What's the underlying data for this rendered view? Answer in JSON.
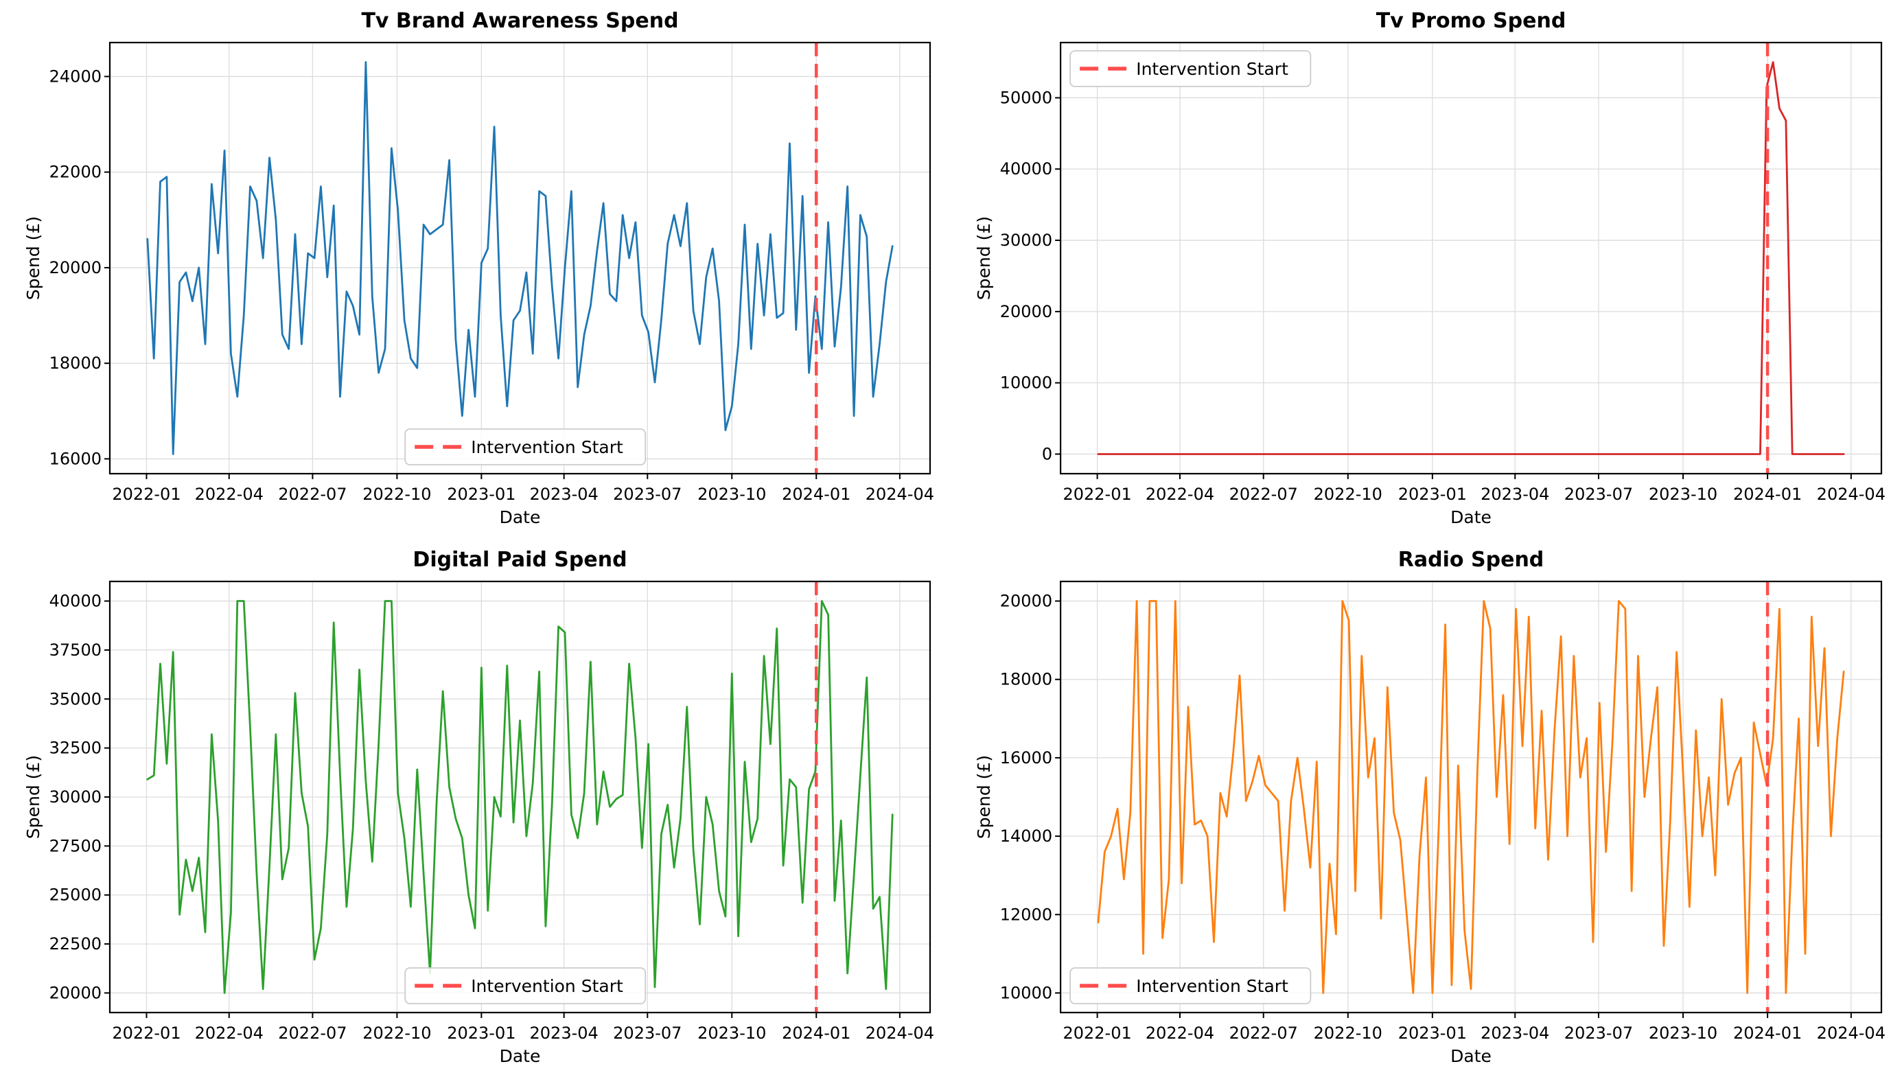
{
  "figure": {
    "background": "#ffffff",
    "grid_color": "#dcdcdc",
    "spine_color": "#000000"
  },
  "legend": {
    "label": "Intervention Start",
    "border_color": "#cccccc",
    "background": "rgba(255,255,255,0.85)"
  },
  "intervention": {
    "label": "Intervention Start",
    "date": "2024-01-01",
    "day": 729,
    "color": "#ff4d4d"
  },
  "chart_data": [
    {
      "type": "line",
      "title": "Tv Brand Awareness Spend",
      "xlabel": "Date",
      "ylabel": "Spend (£)",
      "color": "#1f77b4",
      "x_start": "2022-01-02",
      "x_step_days": 7,
      "xlim": [
        -41,
        853
      ],
      "ylim": [
        15690,
        24710
      ],
      "yticks": [
        16000,
        18000,
        20000,
        22000,
        24000
      ],
      "xtick_labels": [
        "2022-01",
        "2022-04",
        "2022-07",
        "2022-10",
        "2023-01",
        "2023-04",
        "2023-07",
        "2023-10",
        "2024-01",
        "2024-04"
      ],
      "xtick_days": [
        -1,
        89,
        180,
        272,
        364,
        454,
        545,
        637,
        729,
        820
      ],
      "legend_loc": "lower-center",
      "intervention_day": 729,
      "values": [
        20600,
        18100,
        21800,
        21900,
        16100,
        19700,
        19900,
        19300,
        20000,
        18400,
        21750,
        20300,
        22450,
        18200,
        17300,
        19000,
        21700,
        21400,
        20200,
        22300,
        21000,
        18600,
        18300,
        20700,
        18400,
        20300,
        20200,
        21700,
        19800,
        21300,
        17300,
        19500,
        19200,
        18600,
        24300,
        19400,
        17800,
        18300,
        22500,
        21200,
        18900,
        18100,
        17900,
        20900,
        20700,
        20800,
        20900,
        22250,
        18500,
        16900,
        18700,
        17300,
        20100,
        20400,
        22950,
        19000,
        17100,
        18900,
        19100,
        19900,
        18200,
        21600,
        21500,
        19600,
        18100,
        20000,
        21600,
        17500,
        18600,
        19200,
        20350,
        21350,
        19450,
        19300,
        21100,
        20200,
        20950,
        19000,
        18650,
        17600,
        18900,
        20500,
        21100,
        20450,
        21350,
        19100,
        18400,
        19800,
        20400,
        19300,
        16600,
        17100,
        18400,
        20900,
        18300,
        20500,
        19000,
        20700,
        18950,
        19050,
        22600,
        18700,
        21500,
        17800,
        19400,
        18300,
        20950,
        18350,
        19600,
        21700,
        16900,
        21100,
        20650,
        17300,
        18400,
        19700,
        20450
      ]
    },
    {
      "type": "line",
      "title": "Tv Promo Spend",
      "xlabel": "Date",
      "ylabel": "Spend (£)",
      "color": "#d62728",
      "x_start": "2022-01-02",
      "x_step_days": 7,
      "xlim": [
        -41,
        853
      ],
      "ylim": [
        -2750,
        57750
      ],
      "yticks": [
        0,
        10000,
        20000,
        30000,
        40000,
        50000
      ],
      "xtick_labels": [
        "2022-01",
        "2022-04",
        "2022-07",
        "2022-10",
        "2023-01",
        "2023-04",
        "2023-07",
        "2023-10",
        "2024-01",
        "2024-04"
      ],
      "xtick_days": [
        -1,
        89,
        180,
        272,
        364,
        454,
        545,
        637,
        729,
        820
      ],
      "legend_loc": "upper-left",
      "intervention_day": 729,
      "values": [
        0,
        0,
        0,
        0,
        0,
        0,
        0,
        0,
        0,
        0,
        0,
        0,
        0,
        0,
        0,
        0,
        0,
        0,
        0,
        0,
        0,
        0,
        0,
        0,
        0,
        0,
        0,
        0,
        0,
        0,
        0,
        0,
        0,
        0,
        0,
        0,
        0,
        0,
        0,
        0,
        0,
        0,
        0,
        0,
        0,
        0,
        0,
        0,
        0,
        0,
        0,
        0,
        0,
        0,
        0,
        0,
        0,
        0,
        0,
        0,
        0,
        0,
        0,
        0,
        0,
        0,
        0,
        0,
        0,
        0,
        0,
        0,
        0,
        0,
        0,
        0,
        0,
        0,
        0,
        0,
        0,
        0,
        0,
        0,
        0,
        0,
        0,
        0,
        0,
        0,
        0,
        0,
        0,
        0,
        0,
        0,
        0,
        0,
        0,
        0,
        0,
        0,
        0,
        0,
        51500,
        55000,
        48500,
        46800,
        0,
        0,
        0,
        0,
        0,
        0,
        0,
        0,
        0
      ]
    },
    {
      "type": "line",
      "title": "Digital Paid Spend",
      "xlabel": "Date",
      "ylabel": "Spend (£)",
      "color": "#2ca02c",
      "x_start": "2022-01-02",
      "x_step_days": 7,
      "xlim": [
        -41,
        853
      ],
      "ylim": [
        19000,
        41000
      ],
      "yticks": [
        20000,
        22500,
        25000,
        27500,
        30000,
        32500,
        35000,
        37500,
        40000
      ],
      "xtick_labels": [
        "2022-01",
        "2022-04",
        "2022-07",
        "2022-10",
        "2023-01",
        "2023-04",
        "2023-07",
        "2023-10",
        "2024-01",
        "2024-04"
      ],
      "xtick_days": [
        -1,
        89,
        180,
        272,
        364,
        454,
        545,
        637,
        729,
        820
      ],
      "legend_loc": "lower-center",
      "intervention_day": 729,
      "values": [
        30900,
        31100,
        36800,
        31700,
        37400,
        24000,
        26800,
        25200,
        26900,
        23100,
        33200,
        28800,
        20000,
        24100,
        40000,
        40000,
        33500,
        26100,
        20200,
        26500,
        33200,
        25800,
        27400,
        35300,
        30200,
        28500,
        21700,
        23300,
        28100,
        38900,
        31100,
        24400,
        28400,
        36500,
        30800,
        26700,
        32700,
        40000,
        40000,
        30200,
        27900,
        24400,
        31400,
        26100,
        21000,
        29600,
        35400,
        30500,
        28900,
        27900,
        25000,
        23300,
        36600,
        24200,
        30000,
        29000,
        36700,
        28700,
        33900,
        28000,
        30700,
        36400,
        23400,
        29700,
        38700,
        38400,
        29100,
        27900,
        30200,
        36900,
        28600,
        31300,
        29500,
        29900,
        30100,
        36800,
        33000,
        27400,
        32700,
        20300,
        28100,
        29600,
        26400,
        28900,
        34600,
        27300,
        23500,
        30000,
        28600,
        25200,
        23900,
        36300,
        22900,
        31800,
        27700,
        28900,
        37200,
        32700,
        38600,
        26500,
        30900,
        30500,
        24600,
        30400,
        31300,
        40000,
        39300,
        24700,
        28800,
        21000,
        26000,
        31100,
        36100,
        24300,
        24900,
        20200,
        29100
      ]
    },
    {
      "type": "line",
      "title": "Radio Spend",
      "xlabel": "Date",
      "ylabel": "Spend (£)",
      "color": "#ff7f0e",
      "x_start": "2022-01-02",
      "x_step_days": 7,
      "xlim": [
        -41,
        853
      ],
      "ylim": [
        9500,
        20500
      ],
      "yticks": [
        10000,
        12000,
        14000,
        16000,
        18000,
        20000
      ],
      "xtick_labels": [
        "2022-01",
        "2022-04",
        "2022-07",
        "2022-10",
        "2023-01",
        "2023-04",
        "2023-07",
        "2023-10",
        "2024-01",
        "2024-04"
      ],
      "xtick_days": [
        -1,
        89,
        180,
        272,
        364,
        454,
        545,
        637,
        729,
        820
      ],
      "legend_loc": "lower-left",
      "intervention_day": 729,
      "values": [
        11800,
        13600,
        14000,
        14700,
        12900,
        14600,
        20000,
        11000,
        20000,
        20000,
        11400,
        12900,
        20000,
        12800,
        17300,
        14300,
        14400,
        14000,
        11300,
        15100,
        14500,
        16100,
        18100,
        14900,
        15400,
        16050,
        15300,
        15100,
        14900,
        12100,
        14900,
        16000,
        14700,
        13200,
        15900,
        10000,
        13300,
        11500,
        20000,
        19500,
        12600,
        18600,
        15500,
        16500,
        11900,
        17800,
        14600,
        13900,
        12000,
        10000,
        13500,
        15500,
        10000,
        14300,
        19400,
        10200,
        15800,
        11600,
        10100,
        15700,
        20000,
        19300,
        15000,
        17600,
        13800,
        19800,
        16300,
        19600,
        14200,
        17200,
        13400,
        16700,
        19100,
        14000,
        18600,
        15500,
        16500,
        11300,
        17400,
        13600,
        16400,
        20000,
        19800,
        12600,
        18600,
        15000,
        16500,
        17800,
        11200,
        14400,
        18700,
        15600,
        12200,
        16700,
        14000,
        15500,
        13000,
        17500,
        14800,
        15600,
        16000,
        10000,
        16900,
        16100,
        15300,
        16500,
        19800,
        10000,
        14000,
        17000,
        11000,
        19600,
        16300,
        18800,
        14000,
        16500,
        18200
      ]
    }
  ]
}
